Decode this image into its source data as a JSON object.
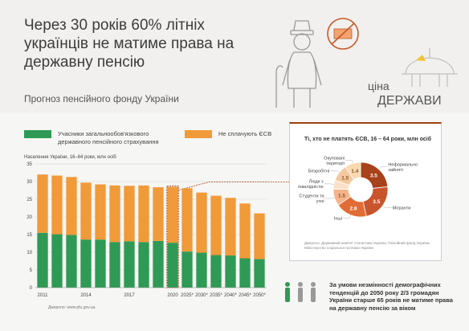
{
  "header": {
    "title": "Через 30 років 60% літніх українців не матиме права на державну пенсію",
    "subtitle": "Прогноз пенсійного фонду України"
  },
  "brand": {
    "line1": "ціна",
    "line2": "ДЕРЖАВИ"
  },
  "colors": {
    "green": "#2f9a55",
    "orange": "#f19a3a",
    "accent": "#a04010",
    "band": "#f6f6f4",
    "bg": "#f1f0ee"
  },
  "legend": {
    "insured": "Учасники загальнообов'язкового державного пенсійного страхування",
    "nonpaying": "Не сплачують ЄСВ"
  },
  "chart_data": [
    {
      "type": "bar",
      "stacked": true,
      "ylabel": "Населення України, 16–64 роки, млн осіб",
      "ylim": [
        0,
        35
      ],
      "yticks": [
        0,
        5,
        10,
        15,
        20,
        25,
        30,
        35
      ],
      "categories": [
        "2011",
        "2012",
        "2013",
        "2014",
        "2015",
        "2016",
        "2017",
        "2018",
        "2019",
        "2020",
        "2025*",
        "2030*",
        "2035*",
        "2040*",
        "2045*",
        "2050*"
      ],
      "tick_labels": [
        "2011",
        "",
        "",
        "2014",
        "",
        "",
        "2017",
        "",
        "",
        "2020",
        "2025*",
        "2030*",
        "2035*",
        "2040*",
        "2045*",
        "2050*"
      ],
      "series": [
        {
          "name": "Учасники загальнообов'язкового державного пенсійного страхування",
          "color": "#2f9a55",
          "values": [
            15.5,
            15.1,
            14.9,
            13.6,
            13.6,
            12.9,
            13.1,
            12.9,
            13.2,
            12.7,
            10.2,
            9.9,
            9.2,
            9.1,
            8.3,
            8.1
          ]
        },
        {
          "name": "Не сплачують ЄСВ",
          "color": "#f19a3a",
          "values": [
            16.5,
            16.6,
            16.4,
            16.1,
            15.6,
            16.0,
            15.7,
            16.0,
            15.2,
            15.8,
            17.9,
            17.0,
            16.8,
            16.3,
            15.5,
            12.9
          ]
        }
      ],
      "highlight_category": "2020"
    },
    {
      "type": "pie",
      "donut": true,
      "title": "Ті, хто не платять ЄСВ, 16 – 64 роки, млн осіб",
      "labels": [
        "Неформально зайняті",
        "Мігранти",
        "Інші",
        "Студенти та учні",
        "Люди з інвалідністю",
        "Безробітні",
        "Окуповані території"
      ],
      "values": [
        3.5,
        3.5,
        2.8,
        1.5,
        0.8,
        1.5,
        1.4
      ],
      "display_values": [
        "3.5",
        "3.5",
        "2.8",
        "1.5",
        "",
        "1.5",
        "1.4"
      ],
      "colors": [
        "#a8421a",
        "#c9552c",
        "#e26c35",
        "#f7b38b",
        "#fbe0c8",
        "#f4c89e",
        "#fbd8ae"
      ],
      "note": "Джерело: Державний комітет статистики України, Пенсійний фонд України, Міністерство соціальної політики України"
    }
  ],
  "footnote": "За умови незмінності демографічних тенденцій до 2050 року 2/3 громадян України старше 65 років не матиме права на державну пенсію за віком",
  "source": "Джерело: www.pfu.gov.ua"
}
